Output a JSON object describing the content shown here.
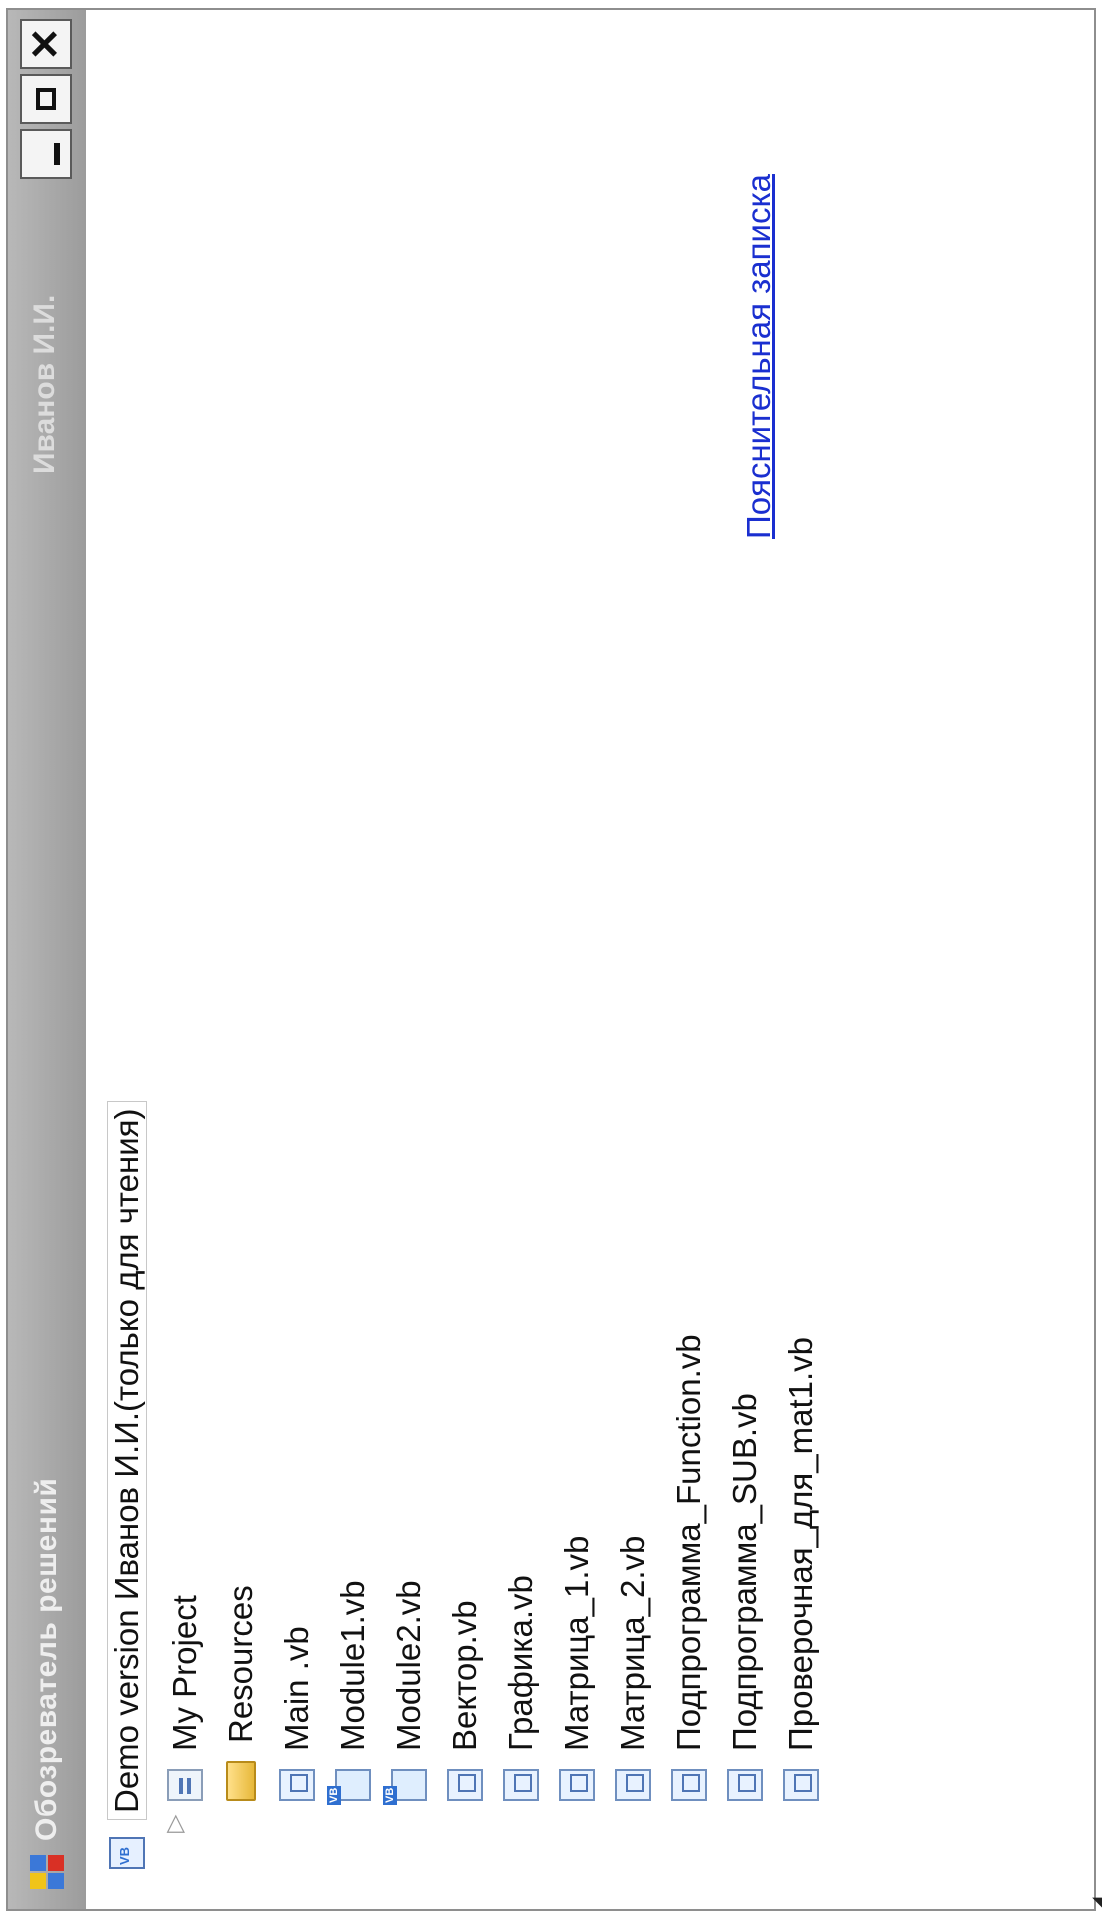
{
  "window": {
    "title": "Обозреватель  решений",
    "user": "Иванов  И.И.",
    "buttons": {
      "minimize_icon": "minimize-icon",
      "maximize_icon": "maximize-icon",
      "close_label": "✕"
    }
  },
  "tree": {
    "root": {
      "label": "Demo version  Иванов  И.И.(только  для  чтения)",
      "icon": "vb-solution-icon"
    },
    "items": [
      {
        "label": "My Project",
        "icon": "project-icon"
      },
      {
        "label": "Resources",
        "icon": "folder-icon"
      },
      {
        "label": "Main .vb",
        "icon": "vb-form-icon"
      },
      {
        "label": "Module1.vb",
        "icon": "vb-module-icon"
      },
      {
        "label": "Module2.vb",
        "icon": "vb-module-icon"
      },
      {
        "label": "Вектор.vb",
        "icon": "vb-form-icon"
      },
      {
        "label": "Графика.vb",
        "icon": "vb-form-icon"
      },
      {
        "label": "Матрица_1.vb",
        "icon": "vb-form-icon"
      },
      {
        "label": "Матрица_2.vb",
        "icon": "vb-form-icon"
      },
      {
        "label": "Подпрограмма_Function.vb",
        "icon": "vb-form-icon"
      },
      {
        "label": "Подпрограмма_SUB.vb",
        "icon": "vb-form-icon"
      },
      {
        "label": "Проверочная_для_mat1.vb",
        "icon": "vb-form-icon"
      }
    ]
  },
  "link": {
    "label": "Пояснительная  записка"
  },
  "colors": {
    "titlebar": "#a8a8a8",
    "link": "#1a2fd0"
  }
}
